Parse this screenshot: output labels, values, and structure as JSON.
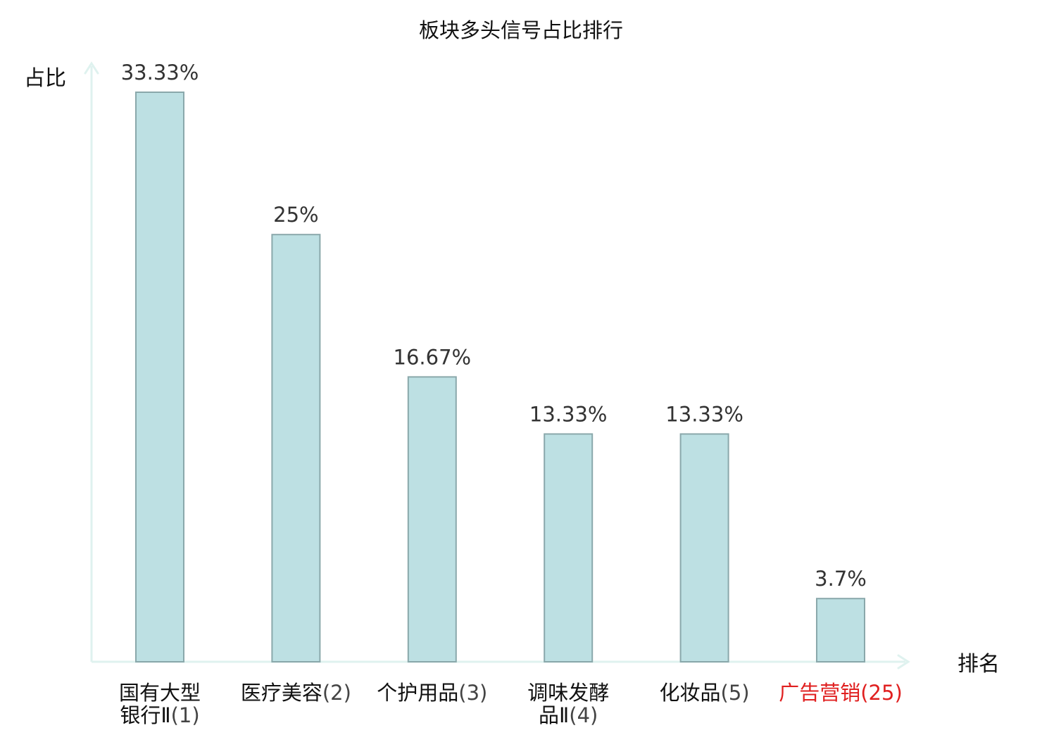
{
  "chart_data": {
    "type": "bar",
    "title": "板块多头信号占比排行",
    "ylabel": "占比",
    "xlabel": "排名",
    "ylim": [
      0,
      35
    ],
    "grid": false,
    "legend": "none",
    "categories": [
      {
        "name_lines": [
          "国有大型",
          "银行Ⅱ"
        ],
        "rank": "(1)",
        "highlight": false
      },
      {
        "name_lines": [
          "医疗美容"
        ],
        "rank": "(2)",
        "highlight": false
      },
      {
        "name_lines": [
          "个护用品"
        ],
        "rank": "(3)",
        "highlight": false
      },
      {
        "name_lines": [
          "调味发酵",
          "品Ⅱ"
        ],
        "rank": "(4)",
        "highlight": false
      },
      {
        "name_lines": [
          "化妆品"
        ],
        "rank": "(5)",
        "highlight": false
      },
      {
        "name_lines": [
          "广告营销"
        ],
        "rank": "(25)",
        "highlight": true
      }
    ],
    "values": [
      33.33,
      25,
      16.67,
      13.33,
      13.33,
      3.7
    ],
    "value_labels": [
      "33.33%",
      "25%",
      "16.67%",
      "13.33%",
      "13.33%",
      "3.7%"
    ],
    "colors": {
      "bar_fill": "#bde0e3",
      "bar_stroke": "#8aa8ab",
      "axis": "#dff2ef",
      "label_text": "#333333",
      "category_text": "#111111",
      "highlight_text": "#e02020"
    }
  }
}
